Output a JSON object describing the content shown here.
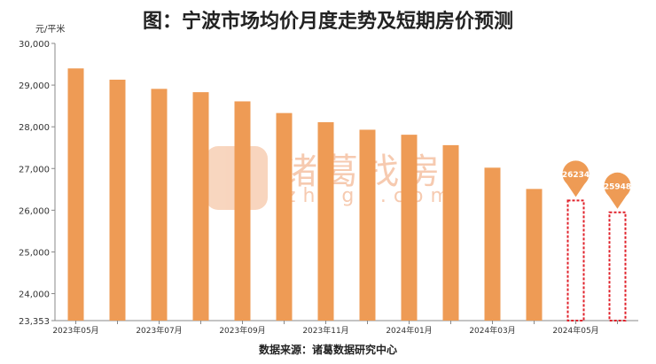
{
  "title": "图：宁波市场均价月度走势及短期房价预测",
  "source": "数据来源：诸葛数据研究中心",
  "watermark": {
    "brand": "诸葛找房",
    "domain": "zhuge.com"
  },
  "colors": {
    "bar": "#ee9b55",
    "forecast_border": "#e0202a",
    "bubble": "#ee9b55",
    "axis": "#888888",
    "text": "#333333"
  },
  "chart_data": {
    "type": "bar",
    "title": "图：宁波市场均价月度走势及短期房价预测",
    "ylabel": "元/平米",
    "ylim": [
      23353,
      30000
    ],
    "yticks": [
      {
        "value": 30000,
        "label": "30,000"
      },
      {
        "value": 29000,
        "label": "29,000"
      },
      {
        "value": 28000,
        "label": "28,000"
      },
      {
        "value": 27000,
        "label": "27,000"
      },
      {
        "value": 26000,
        "label": "26,000"
      },
      {
        "value": 25000,
        "label": "25,000"
      },
      {
        "value": 24000,
        "label": "24,000"
      },
      {
        "value": 23353,
        "label": "23,353"
      }
    ],
    "categories": [
      "2023-05",
      "2023-06",
      "2023-07",
      "2023-08",
      "2023-09",
      "2023-10",
      "2023-11",
      "2023-12",
      "2024-01",
      "2024-02",
      "2024-03",
      "2024-04",
      "2024-05",
      "2024-06"
    ],
    "xtick_labels": [
      "2023年05月",
      "",
      "2023年07月",
      "",
      "2023年09月",
      "",
      "2023年11月",
      "",
      "2024年01月",
      "",
      "2024年03月",
      "",
      "2024年05月",
      ""
    ],
    "values": [
      29400,
      29130,
      28910,
      28830,
      28610,
      28330,
      28110,
      27930,
      27810,
      27560,
      27020,
      26510,
      26234,
      25948
    ],
    "forecast": [
      false,
      false,
      false,
      false,
      false,
      false,
      false,
      false,
      false,
      false,
      false,
      false,
      true,
      true
    ],
    "forecast_labels": [
      "",
      "",
      "",
      "",
      "",
      "",
      "",
      "",
      "",
      "",
      "",
      "",
      "26234",
      "25948"
    ],
    "grid": false,
    "legend": "none"
  }
}
